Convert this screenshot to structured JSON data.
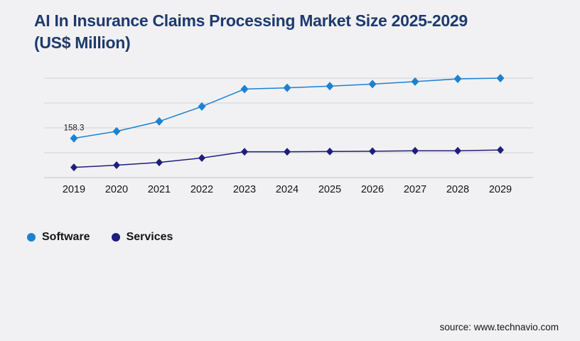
{
  "header": {
    "title_line1": "AI In Insurance Claims Processing Market Size 2025-2029",
    "title_line2": "(US$ Million)",
    "title_color": "#1e3a6d"
  },
  "legend": {
    "items": [
      {
        "label": "Software",
        "color": "#1b82d2"
      },
      {
        "label": "Services",
        "color": "#1e1e7e"
      }
    ]
  },
  "footer": {
    "source_text": "source: www.technavio.com"
  },
  "chart_data": {
    "type": "line",
    "title": "AI In Insurance Claims Processing Market Size 2025-2029 (US$ Million)",
    "x": [
      2019,
      2020,
      2021,
      2022,
      2023,
      2024,
      2025,
      2026,
      2027,
      2028,
      2029
    ],
    "series": [
      {
        "name": "Software",
        "color": "#1b82d2",
        "marker": "diamond",
        "values": [
          158.3,
          186,
          226,
          286,
          356,
          361,
          368,
          376,
          386,
          397,
          400
        ]
      },
      {
        "name": "Services",
        "color": "#1e1e7e",
        "marker": "diamond",
        "values": [
          41,
          50,
          61,
          79,
          104,
          104,
          105,
          106,
          108,
          108,
          111
        ]
      }
    ],
    "point_labels": [
      {
        "series": "Software",
        "x": 2019,
        "text": "158.3"
      }
    ],
    "ylim": [
      0,
      400
    ],
    "grid_interval": 100,
    "grid": "horizontal",
    "y_axis_labels_visible": false,
    "x_axis_labels_visible": true,
    "legend_position": "bottom-left",
    "colors": {
      "gridline": "#d3d3d5",
      "axis_line": "#c2c2c4",
      "x_label": "#141414",
      "point_label": "#1a1a1a"
    }
  }
}
